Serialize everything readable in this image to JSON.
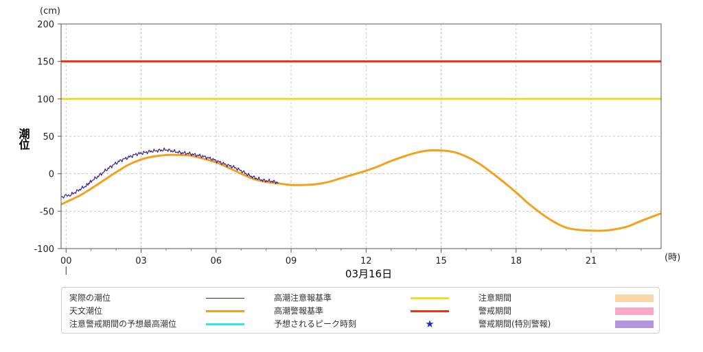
{
  "chart_data": {
    "type": "line",
    "yunit": "(cm)",
    "xunit": "(時)",
    "ylabel": "潮位",
    "date_label": "03月16日",
    "ylim": [
      -100,
      200
    ],
    "yticks": [
      200,
      150,
      100,
      50,
      0,
      -50,
      -100
    ],
    "xlim": [
      -0.2,
      23.8
    ],
    "xticks": [
      {
        "x": 0,
        "label": "00"
      },
      {
        "x": 3,
        "label": "03"
      },
      {
        "x": 6,
        "label": "06"
      },
      {
        "x": 9,
        "label": "09"
      },
      {
        "x": 12,
        "label": "12"
      },
      {
        "x": 15,
        "label": "15"
      },
      {
        "x": 18,
        "label": "18"
      },
      {
        "x": 21,
        "label": "21"
      }
    ],
    "grid": true,
    "thresholds": [
      {
        "name": "高潮警報基準",
        "value": 150,
        "color": "#ee3311"
      },
      {
        "name": "高潮注意報基準",
        "value": 100,
        "color": "#eedd22"
      }
    ],
    "series": [
      {
        "name": "天文潮位",
        "color": "#f5a01a",
        "x": [
          -0.2,
          0.5,
          1,
          1.5,
          2,
          2.5,
          3,
          3.5,
          4,
          4.5,
          5,
          5.5,
          6,
          6.5,
          7,
          7.5,
          8,
          8.5,
          9,
          9.5,
          10,
          10.5,
          11,
          11.5,
          12,
          12.5,
          13,
          13.5,
          14,
          14.5,
          15,
          15.5,
          16,
          16.5,
          17,
          17.5,
          18,
          18.5,
          19,
          19.5,
          20,
          20.5,
          21,
          21.5,
          22,
          22.5,
          23,
          23.8
        ],
        "y": [
          -41,
          -30,
          -20,
          -9,
          2,
          12,
          19,
          23,
          25,
          25,
          24,
          20,
          15,
          8,
          0,
          -7,
          -11,
          -13,
          -15,
          -15,
          -14,
          -11,
          -6,
          -1,
          4,
          10,
          17,
          23,
          28,
          31,
          31,
          29,
          23,
          14,
          2,
          -11,
          -25,
          -40,
          -53,
          -64,
          -72,
          -75,
          -76,
          -76,
          -74,
          -70,
          -63,
          -53
        ]
      },
      {
        "name": "実際の潮位",
        "color": "#3a1f8c",
        "x": [
          -0.2,
          0.2,
          0.5,
          0.8,
          1.0,
          1.3,
          1.6,
          1.9,
          2.2,
          2.5,
          2.8,
          3.1,
          3.4,
          3.7,
          4.0,
          4.3,
          4.6,
          4.9,
          5.2,
          5.5,
          5.8,
          6.1,
          6.4,
          6.7,
          7.0,
          7.3,
          7.6,
          7.9,
          8.2,
          8.5
        ],
        "y": [
          -31,
          -28,
          -22,
          -16,
          -10,
          -3,
          5,
          12,
          18,
          22,
          26,
          28,
          30,
          31,
          32,
          30,
          28,
          27,
          25,
          23,
          20,
          16,
          12,
          9,
          4,
          -2,
          -6,
          -9,
          -10,
          -12
        ]
      }
    ],
    "legend": [
      {
        "label": "実際の潮位",
        "kind": "thin-line",
        "color": "#3a1f8c"
      },
      {
        "label": "高潮注意報基準",
        "kind": "line",
        "color": "#eedd22"
      },
      {
        "label": "注意期間",
        "kind": "box",
        "color": "#f8d6a6"
      },
      {
        "label": "天文潮位",
        "kind": "line",
        "color": "#f5a01a"
      },
      {
        "label": "高潮警報基準",
        "kind": "line",
        "color": "#ee3311"
      },
      {
        "label": "警戒期間",
        "kind": "box",
        "color": "#f9a8c8"
      },
      {
        "label": "注意警戒期間の予想最高潮位",
        "kind": "line",
        "color": "#30e8e8"
      },
      {
        "label": "予想されるピーク時刻",
        "kind": "star",
        "color": "#1b2bd6"
      },
      {
        "label": "警戒期間(特別警報)",
        "kind": "box",
        "color": "#b396df"
      }
    ]
  }
}
